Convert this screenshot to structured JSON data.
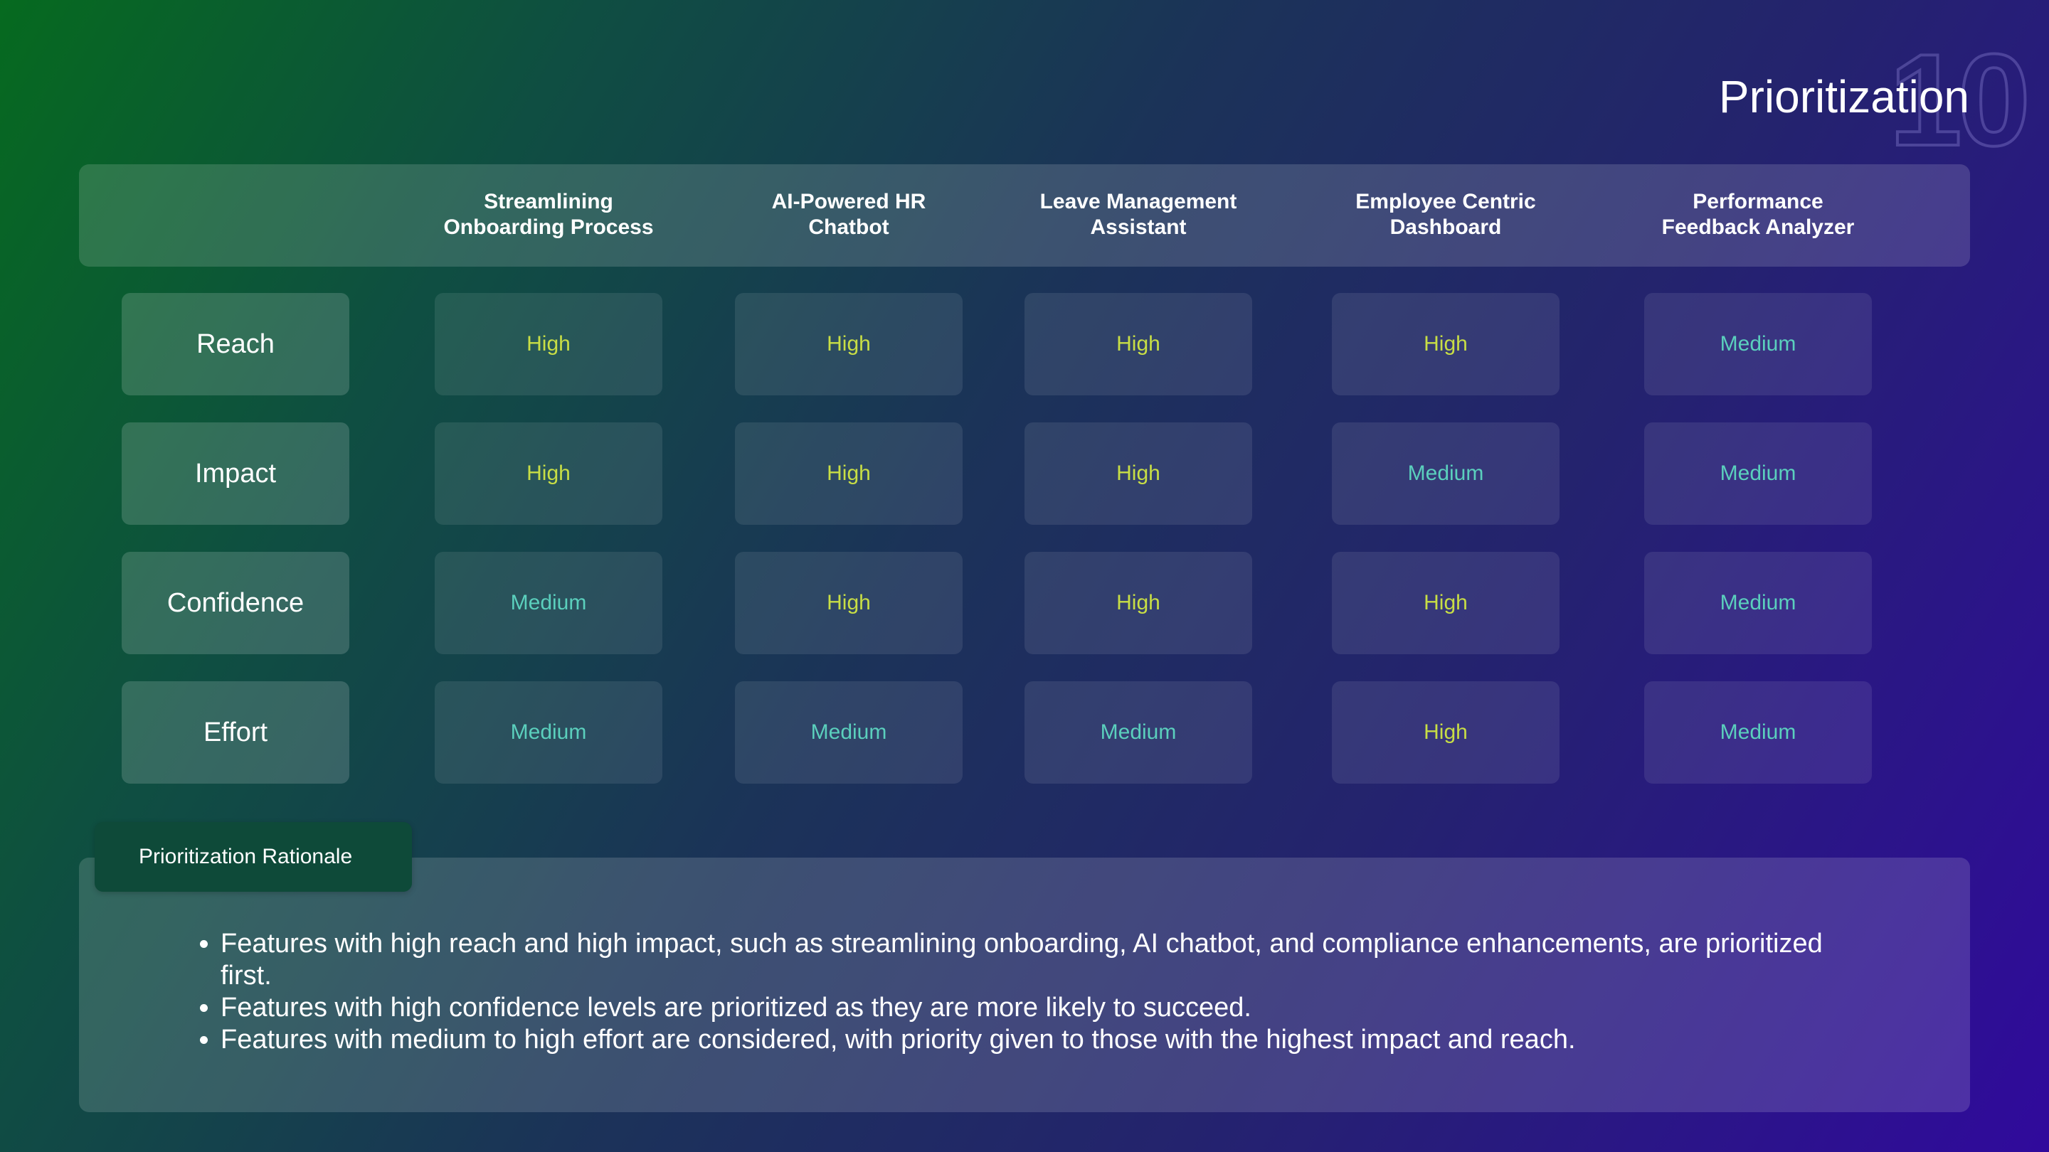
{
  "slide": {
    "number": "10",
    "title": "Prioritization"
  },
  "columns": [
    {
      "line1": "Streamlining",
      "line2": "Onboarding Process"
    },
    {
      "line1": "AI-Powered HR",
      "line2": "Chatbot"
    },
    {
      "line1": "Leave Management",
      "line2": "Assistant"
    },
    {
      "line1": "Employee Centric",
      "line2": "Dashboard"
    },
    {
      "line1": "Performance",
      "line2": "Feedback Analyzer"
    }
  ],
  "rows": [
    {
      "label": "Reach",
      "values": [
        "High",
        "High",
        "High",
        "High",
        "Medium"
      ]
    },
    {
      "label": "Impact",
      "values": [
        "High",
        "High",
        "High",
        "Medium",
        "Medium"
      ]
    },
    {
      "label": "Confidence",
      "values": [
        "Medium",
        "High",
        "High",
        "High",
        "Medium"
      ]
    },
    {
      "label": "Effort",
      "values": [
        "Medium",
        "Medium",
        "Medium",
        "High",
        "Medium"
      ]
    }
  ],
  "colors": {
    "high": "#c8de45",
    "medium": "#5bd0bd"
  },
  "rationale": {
    "title": "Prioritization Rationale",
    "bullets": [
      "Features with high reach and high impact, such as streamlining onboarding, AI chatbot, and compliance enhancements, are prioritized first.",
      "Features with high confidence levels are prioritized as they are more likely to succeed.",
      "Features with medium to high effort are considered, with priority given to those with the highest impact and reach."
    ]
  }
}
